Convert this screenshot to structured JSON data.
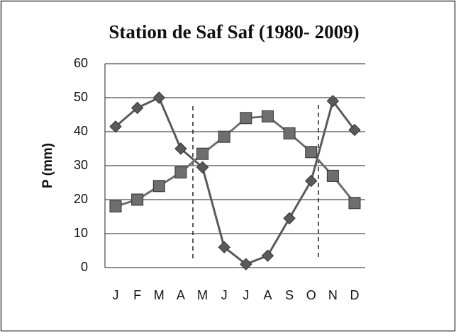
{
  "chart_data": {
    "type": "line",
    "title": "Station de Saf Saf (1980- 2009)",
    "y_label": "P (mm)",
    "categories": [
      "J",
      "F",
      "M",
      "A",
      "M",
      "J",
      "J",
      "A",
      "S",
      "O",
      "N",
      "D"
    ],
    "series": [
      {
        "color": "#5a5a5a",
        "marker": "diamond",
        "values": [
          41.5,
          47,
          50,
          35,
          29.5,
          6,
          1,
          3.5,
          14.5,
          25.5,
          49,
          40.5
        ]
      },
      {
        "color": "#6e6e6e",
        "marker": "square",
        "values": [
          18,
          20,
          24,
          28,
          33.5,
          38.5,
          44,
          44.5,
          39.5,
          34,
          27,
          19
        ]
      }
    ],
    "ylim": [
      0,
      60
    ],
    "yticks": [
      0,
      10,
      20,
      30,
      40,
      50,
      60
    ],
    "grid": true
  }
}
